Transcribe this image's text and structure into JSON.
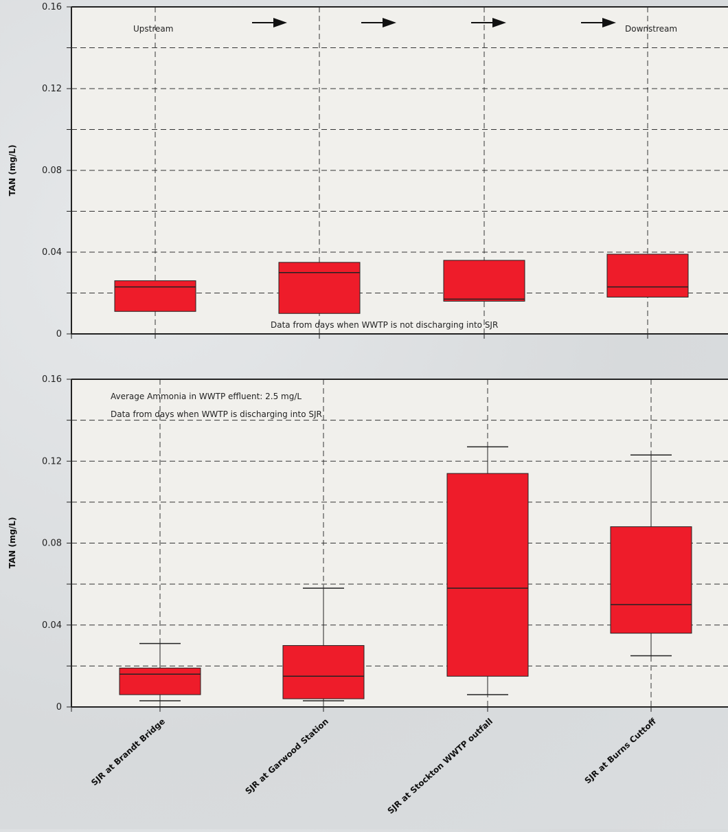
{
  "colors": {
    "box_fill": "#ee1c2a",
    "plot_bg": "#f1f0ec",
    "page_bg": "#dcdfe1",
    "frame": "#222222"
  },
  "chart_data": [
    {
      "type": "box",
      "ylabel": "TAN (mg/L)",
      "ylim": [
        0,
        0.16
      ],
      "ytick_labels": [
        "0",
        "0.04",
        "0.08",
        "0.12",
        "0.16"
      ],
      "grid": true,
      "annotations": {
        "upstream": "Upstream",
        "downstream": "Downstream",
        "condition": "Data from days when WWTP is not discharging into SJR"
      },
      "categories": [
        "SJR at Brandt Bridge",
        "SJR at Garwood Station",
        "SJR at Stockton WWTP outfall",
        "SJR at Burns Cuttoff"
      ],
      "boxes": [
        {
          "min": 0.011,
          "q1": 0.011,
          "median": 0.023,
          "q3": 0.026,
          "max": 0.026
        },
        {
          "min": 0.01,
          "q1": 0.01,
          "median": 0.03,
          "q3": 0.035,
          "max": 0.035
        },
        {
          "min": 0.016,
          "q1": 0.016,
          "median": 0.017,
          "q3": 0.036,
          "max": 0.036
        },
        {
          "min": 0.018,
          "q1": 0.018,
          "median": 0.023,
          "q3": 0.039,
          "max": 0.039
        }
      ]
    },
    {
      "type": "box",
      "ylabel": "TAN (mg/L)",
      "ylim": [
        0,
        0.16
      ],
      "ytick_labels": [
        "0",
        "0.04",
        "0.08",
        "0.12",
        "0.16"
      ],
      "grid": true,
      "annotations": {
        "avg_ammonia": "Average Ammonia in WWTP effluent: 2.5 mg/L",
        "condition": "Data from days when WWTP is discharging into SJR"
      },
      "categories": [
        "SJR at Brandt Bridge",
        "SJR at Garwood Station",
        "SJR at Stockton WWTP outfall",
        "SJR at Burns Cuttoff"
      ],
      "boxes": [
        {
          "min": 0.003,
          "q1": 0.006,
          "median": 0.016,
          "q3": 0.019,
          "max": 0.031
        },
        {
          "min": 0.003,
          "q1": 0.004,
          "median": 0.015,
          "q3": 0.03,
          "max": 0.058
        },
        {
          "min": 0.006,
          "q1": 0.015,
          "median": 0.058,
          "q3": 0.114,
          "max": 0.127
        },
        {
          "min": 0.025,
          "q1": 0.036,
          "median": 0.05,
          "q3": 0.088,
          "max": 0.123
        }
      ]
    }
  ]
}
